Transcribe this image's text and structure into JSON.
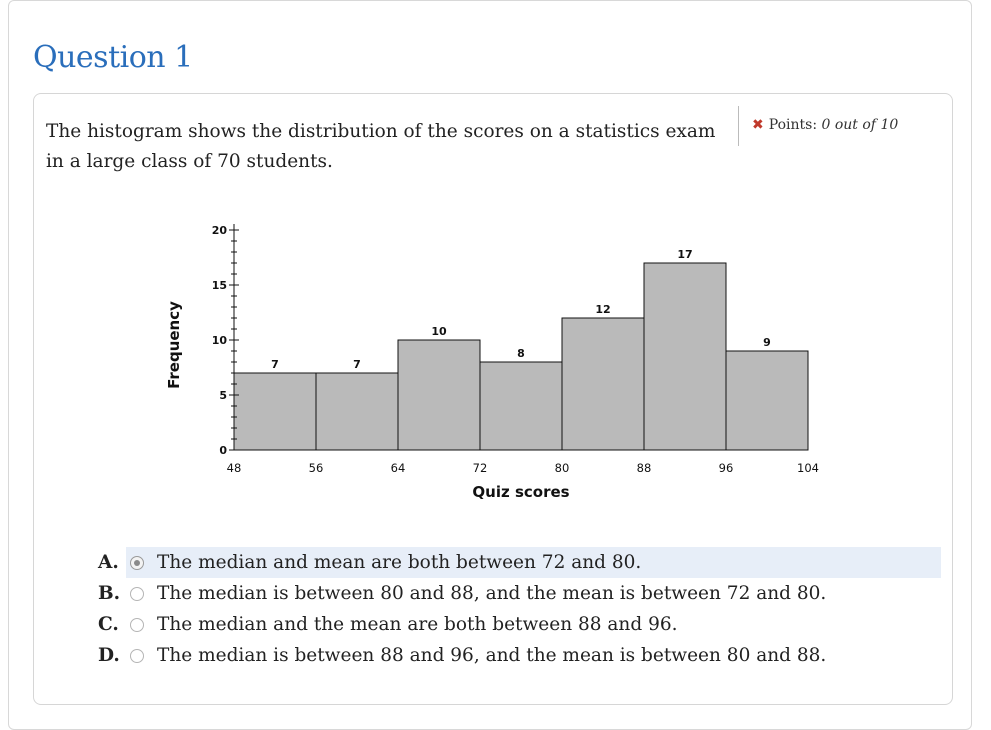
{
  "question": {
    "title": "Question 1",
    "prompt": "The histogram shows the distribution of the scores on a statistics exam in a large class of 70 students.",
    "points": {
      "icon": "x-icon",
      "label": "Points:",
      "value": "0 out of 10"
    }
  },
  "chart_data": {
    "type": "bar",
    "title": "",
    "xlabel": "Quiz scores",
    "ylabel": "Frequency",
    "bins": [
      [
        48,
        56
      ],
      [
        56,
        64
      ],
      [
        64,
        72
      ],
      [
        72,
        80
      ],
      [
        80,
        88
      ],
      [
        88,
        96
      ],
      [
        96,
        104
      ]
    ],
    "values": [
      7,
      7,
      10,
      8,
      12,
      17,
      9
    ],
    "value_labels": [
      "7",
      "7",
      "10",
      "8",
      "12",
      "17",
      "9"
    ],
    "x_ticks": [
      "48",
      "56",
      "64",
      "72",
      "80",
      "88",
      "96",
      "104"
    ],
    "y_ticks": [
      "0",
      "5",
      "10",
      "15",
      "20"
    ],
    "ylim": [
      0,
      20
    ],
    "bar_color": "#bababa",
    "grid": false
  },
  "answers": [
    {
      "letter": "A.",
      "text": "The median and mean are both between 72 and 80.",
      "selected": true
    },
    {
      "letter": "B.",
      "text": "The median is between 80 and 88, and the mean is between 72 and 80.",
      "selected": false
    },
    {
      "letter": "C.",
      "text": "The median and the mean are both between 88 and 96.",
      "selected": false
    },
    {
      "letter": "D.",
      "text": "The median is between 88 and 96, and the mean is between 80 and 88.",
      "selected": false
    }
  ]
}
